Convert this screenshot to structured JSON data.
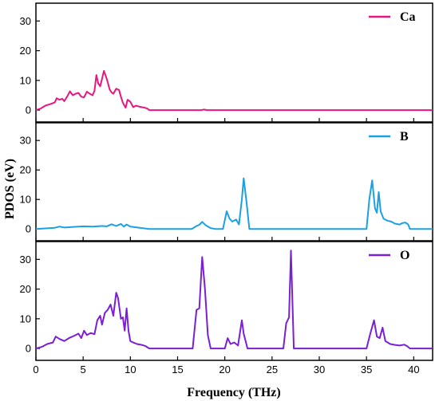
{
  "figure": {
    "xlabel": "Frequency (THz)",
    "ylabel": "PDOS (eV)"
  },
  "chart_data": [
    {
      "type": "line",
      "panel": "top",
      "xlim": [
        0,
        42
      ],
      "ylim": [
        -4,
        36
      ],
      "xticks": [
        0,
        5,
        10,
        15,
        20,
        25,
        30,
        35,
        40
      ],
      "yticks": [
        0,
        10,
        20,
        30
      ],
      "legend_position": "top-right",
      "series": [
        {
          "name": "Ca",
          "color": "#E8177F",
          "x": [
            0,
            0.5,
            1.0,
            1.5,
            2.0,
            2.2,
            2.5,
            2.8,
            3.0,
            3.3,
            3.6,
            3.9,
            4.2,
            4.5,
            4.8,
            5.1,
            5.4,
            5.7,
            6.0,
            6.2,
            6.4,
            6.6,
            6.8,
            7.0,
            7.2,
            7.5,
            7.8,
            8.0,
            8.2,
            8.5,
            8.8,
            9.0,
            9.2,
            9.5,
            9.7,
            10.0,
            10.3,
            10.6,
            10.9,
            11.2,
            11.5,
            11.8,
            12.0,
            13,
            15,
            17.5,
            17.8,
            18.1,
            20,
            25,
            30,
            35,
            40,
            42
          ],
          "y": [
            0,
            0.5,
            1.5,
            2.0,
            2.6,
            4.0,
            3.5,
            3.8,
            3.0,
            4.5,
            6.3,
            5.0,
            5.5,
            5.8,
            4.5,
            4.3,
            6.2,
            5.5,
            5.0,
            6.5,
            11.8,
            9.0,
            8.0,
            10.5,
            13.2,
            10.5,
            7.0,
            6.0,
            5.5,
            7.2,
            6.8,
            4.5,
            2.5,
            0.8,
            3.5,
            2.8,
            1.0,
            1.5,
            1.2,
            1.0,
            0.8,
            0.5,
            0,
            0,
            0,
            0,
            0.2,
            0,
            0,
            0,
            0,
            0,
            0,
            0
          ]
        }
      ]
    },
    {
      "type": "line",
      "panel": "middle",
      "xlim": [
        0,
        42
      ],
      "ylim": [
        -4,
        36
      ],
      "xticks": [
        0,
        5,
        10,
        15,
        20,
        25,
        30,
        35,
        40
      ],
      "yticks": [
        0,
        10,
        20,
        30
      ],
      "legend_position": "top-right",
      "series": [
        {
          "name": "B",
          "color": "#1BA1E2",
          "x": [
            0,
            1,
            2,
            2.5,
            3,
            4,
            5,
            6,
            7,
            7.5,
            8,
            8.5,
            9,
            9.3,
            9.6,
            10,
            10.5,
            11,
            12,
            15,
            16.5,
            17,
            17.3,
            17.6,
            18,
            18.5,
            19,
            19.8,
            20.2,
            20.5,
            20.8,
            21.2,
            21.5,
            21.8,
            22.0,
            22.3,
            22.6,
            23,
            25,
            30,
            35,
            35.3,
            35.6,
            35.9,
            36.1,
            36.3,
            36.5,
            36.8,
            37.2,
            37.6,
            38,
            38.5,
            38.8,
            39.1,
            39.4,
            39.6,
            40,
            42
          ],
          "y": [
            0,
            0.2,
            0.4,
            0.8,
            0.5,
            0.7,
            0.9,
            0.8,
            1.0,
            0.9,
            1.6,
            1.0,
            1.7,
            0.8,
            1.5,
            0.8,
            0.6,
            0.4,
            0,
            0,
            0,
            1.0,
            1.4,
            2.4,
            1.2,
            0.3,
            0,
            0,
            6.0,
            3.5,
            2.5,
            3.2,
            1.5,
            10.0,
            17.2,
            9.0,
            0,
            0,
            0,
            0,
            0,
            10.0,
            16.5,
            7.0,
            5.5,
            12.5,
            6.0,
            3.5,
            2.8,
            2.5,
            1.8,
            1.5,
            2.0,
            2.2,
            1.6,
            0,
            0,
            0
          ]
        }
      ]
    },
    {
      "type": "line",
      "panel": "bottom",
      "xlim": [
        0,
        42
      ],
      "ylim": [
        -4,
        36
      ],
      "xticks": [
        0,
        5,
        10,
        15,
        20,
        25,
        30,
        35,
        40
      ],
      "yticks": [
        0,
        10,
        20,
        30
      ],
      "legend_position": "top-right",
      "series": [
        {
          "name": "O",
          "color": "#7B1FD6",
          "x": [
            0,
            0.6,
            1.2,
            1.8,
            2.1,
            2.5,
            3.0,
            3.5,
            4.0,
            4.5,
            4.8,
            5.1,
            5.4,
            5.8,
            6.2,
            6.5,
            6.8,
            7.0,
            7.3,
            7.6,
            7.9,
            8.2,
            8.5,
            8.7,
            9.0,
            9.2,
            9.4,
            9.6,
            9.8,
            10.0,
            10.3,
            10.7,
            11.2,
            11.6,
            12.0,
            14,
            16.6,
            17.0,
            17.3,
            17.6,
            17.9,
            18.2,
            18.5,
            19,
            20,
            20.3,
            20.6,
            21.0,
            21.4,
            21.8,
            22.0,
            22.4,
            23,
            25,
            26.2,
            26.5,
            26.8,
            27.0,
            27.3,
            28,
            30,
            35,
            35.4,
            35.8,
            36.1,
            36.4,
            36.7,
            37.0,
            37.5,
            38,
            38.5,
            39,
            39.3,
            39.6,
            40,
            42
          ],
          "y": [
            0,
            0.5,
            1.5,
            2.0,
            4.0,
            3.2,
            2.5,
            3.5,
            4.2,
            5.0,
            3.5,
            6.0,
            4.5,
            5.2,
            4.8,
            9.5,
            11.0,
            8.0,
            12.0,
            13.0,
            14.8,
            11.0,
            18.8,
            17.0,
            10.0,
            10.5,
            6.0,
            13.5,
            6.0,
            2.5,
            2.0,
            1.5,
            1.2,
            0.8,
            0,
            0,
            0,
            13.0,
            13.5,
            30.8,
            20.0,
            4.5,
            0,
            0,
            0,
            3.5,
            1.5,
            2.0,
            1.0,
            9.5,
            5.0,
            0,
            0,
            0,
            0,
            8.5,
            10.5,
            33.0,
            0,
            0,
            0,
            0,
            5.0,
            9.5,
            4.0,
            3.5,
            7.0,
            2.5,
            1.5,
            1.2,
            1.0,
            1.3,
            0.8,
            0,
            0,
            0
          ]
        }
      ]
    }
  ]
}
